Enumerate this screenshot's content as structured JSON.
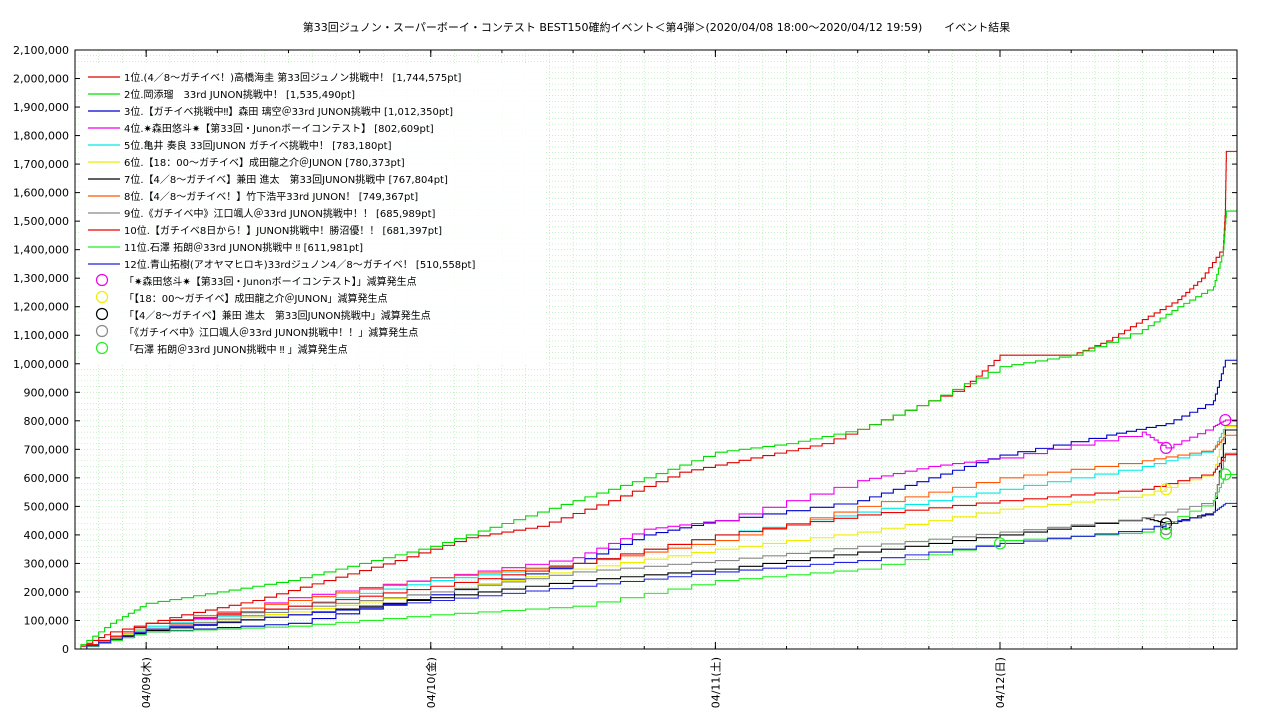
{
  "chart_data": {
    "type": "line",
    "title": "第33回ジュノン・スーパーボーイ・コンテスト BEST150確約イベント＜第4弾＞(2020/04/08 18:00～2020/04/12 19:59)　　イベント結果",
    "xlabel": "",
    "ylabel": "",
    "grid": true,
    "legend_position": "top-left",
    "x_range": [
      "2020-04-08 18:00",
      "2020-04-12 19:59"
    ],
    "ylim": [
      0,
      2100000
    ],
    "y_ticks": [
      0,
      100000,
      200000,
      300000,
      400000,
      500000,
      600000,
      700000,
      800000,
      900000,
      1000000,
      1100000,
      1200000,
      1300000,
      1400000,
      1500000,
      1600000,
      1700000,
      1800000,
      1900000,
      2000000,
      2100000
    ],
    "y_tick_labels": [
      "0",
      "100,000",
      "200,000",
      "300,000",
      "400,000",
      "500,000",
      "600,000",
      "700,000",
      "800,000",
      "900,000",
      "1,000,000",
      "1,100,000",
      "1,200,000",
      "1,300,000",
      "1,400,000",
      "1,500,000",
      "1,600,000",
      "1,700,000",
      "1,800,000",
      "1,900,000",
      "2,000,000",
      "2,100,000"
    ],
    "x_ticks": [
      {
        "x": "2020-04-09 00:00",
        "label": "04/09(木)"
      },
      {
        "x": "2020-04-10 00:00",
        "label": "04/10(金)"
      },
      {
        "x": "2020-04-11 00:00",
        "label": "04/11(土)"
      },
      {
        "x": "2020-04-12 00:00",
        "label": "04/12(日)"
      }
    ],
    "series": [
      {
        "name": "1位.(4／8～ガチイベ！)高橋海圭 第33回ジュノン挑戦中！ [1,744,575pt]",
        "color": "#e00000",
        "points": [
          [
            "2020-04-08 18:00",
            0
          ],
          [
            "2020-04-08 21:00",
            60000
          ],
          [
            "2020-04-09 03:00",
            120000
          ],
          [
            "2020-04-09 09:00",
            170000
          ],
          [
            "2020-04-09 15:00",
            240000
          ],
          [
            "2020-04-09 21:00",
            310000
          ],
          [
            "2020-04-10 03:00",
            390000
          ],
          [
            "2020-04-10 09:00",
            430000
          ],
          [
            "2020-04-10 15:00",
            520000
          ],
          [
            "2020-04-10 21:00",
            620000
          ],
          [
            "2020-04-11 03:00",
            670000
          ],
          [
            "2020-04-11 09:00",
            720000
          ],
          [
            "2020-04-11 15:00",
            820000
          ],
          [
            "2020-04-11 21:00",
            920000
          ],
          [
            "2020-04-12 00:00",
            1030000
          ],
          [
            "2020-04-12 06:00",
            1030000
          ],
          [
            "2020-04-12 09:00",
            1080000
          ],
          [
            "2020-04-12 12:00",
            1155000
          ],
          [
            "2020-04-12 15:00",
            1225000
          ],
          [
            "2020-04-12 17:00",
            1300000
          ],
          [
            "2020-04-12 18:50",
            1410000
          ],
          [
            "2020-04-12 19:00",
            1540000
          ],
          [
            "2020-04-12 19:05",
            1744575
          ]
        ]
      },
      {
        "name": "2位.岡添瑠　33rd JUNON挑戦中！ [1,535,490pt]",
        "color": "#00dd00",
        "points": [
          [
            "2020-04-08 18:00",
            0
          ],
          [
            "2020-04-08 21:00",
            90000
          ],
          [
            "2020-04-09 00:00",
            160000
          ],
          [
            "2020-04-09 06:00",
            200000
          ],
          [
            "2020-04-09 12:00",
            240000
          ],
          [
            "2020-04-09 18:00",
            300000
          ],
          [
            "2020-04-10 00:00",
            360000
          ],
          [
            "2020-04-10 06:00",
            440000
          ],
          [
            "2020-04-10 12:00",
            520000
          ],
          [
            "2020-04-10 18:00",
            600000
          ],
          [
            "2020-04-11 00:00",
            690000
          ],
          [
            "2020-04-11 06:00",
            720000
          ],
          [
            "2020-04-11 12:00",
            770000
          ],
          [
            "2020-04-11 18:00",
            870000
          ],
          [
            "2020-04-12 00:00",
            990000
          ],
          [
            "2020-04-12 06:00",
            1030000
          ],
          [
            "2020-04-12 12:00",
            1120000
          ],
          [
            "2020-04-12 15:00",
            1200000
          ],
          [
            "2020-04-12 18:00",
            1270000
          ],
          [
            "2020-04-12 18:50",
            1400000
          ],
          [
            "2020-04-12 19:05",
            1535490
          ]
        ]
      },
      {
        "name": "3位.【ガチイベ挑戦中‼】森田 璃空＠33rd JUNON挑戦中 [1,012,350pt]",
        "color": "#0000cc",
        "points": [
          [
            "2020-04-08 18:00",
            0
          ],
          [
            "2020-04-09 00:00",
            60000
          ],
          [
            "2020-04-09 12:00",
            90000
          ],
          [
            "2020-04-10 00:00",
            190000
          ],
          [
            "2020-04-10 12:00",
            300000
          ],
          [
            "2020-04-10 18:00",
            400000
          ],
          [
            "2020-04-11 00:00",
            450000
          ],
          [
            "2020-04-11 12:00",
            520000
          ],
          [
            "2020-04-11 18:00",
            600000
          ],
          [
            "2020-04-12 00:00",
            680000
          ],
          [
            "2020-04-12 09:00",
            750000
          ],
          [
            "2020-04-12 14:00",
            790000
          ],
          [
            "2020-04-12 18:00",
            870000
          ],
          [
            "2020-04-12 19:00",
            1012350
          ]
        ]
      },
      {
        "name": "4位.✷森田悠斗✷【第33回・Junonボーイコンテスト】 [802,609pt]",
        "color": "#ee00ee",
        "points": [
          [
            "2020-04-08 18:00",
            0
          ],
          [
            "2020-04-09 00:00",
            70000
          ],
          [
            "2020-04-09 12:00",
            180000
          ],
          [
            "2020-04-10 00:00",
            250000
          ],
          [
            "2020-04-10 12:00",
            320000
          ],
          [
            "2020-04-10 18:00",
            420000
          ],
          [
            "2020-04-11 00:00",
            450000
          ],
          [
            "2020-04-11 12:00",
            590000
          ],
          [
            "2020-04-11 18:00",
            640000
          ],
          [
            "2020-04-12 00:00",
            670000
          ],
          [
            "2020-04-12 12:00",
            760000
          ],
          [
            "2020-04-12 14:00",
            705000
          ],
          [
            "2020-04-12 18:00",
            780000
          ],
          [
            "2020-04-12 19:00",
            802609
          ]
        ]
      },
      {
        "name": "5位.亀井 奏良 33回JUNON ガチイベ挑戦中！ [783,180pt]",
        "color": "#00e8e8",
        "points": [
          [
            "2020-04-08 18:00",
            0
          ],
          [
            "2020-04-09 00:00",
            80000
          ],
          [
            "2020-04-09 12:00",
            150000
          ],
          [
            "2020-04-10 00:00",
            240000
          ],
          [
            "2020-04-10 12:00",
            300000
          ],
          [
            "2020-04-11 00:00",
            400000
          ],
          [
            "2020-04-11 12:00",
            480000
          ],
          [
            "2020-04-12 00:00",
            560000
          ],
          [
            "2020-04-12 12:00",
            640000
          ],
          [
            "2020-04-12 18:00",
            700000
          ],
          [
            "2020-04-12 19:00",
            783180
          ]
        ]
      },
      {
        "name": "6位.【18：00～ガチイベ】成田龍之介＠JUNON [780,373pt]",
        "color": "#eeee00",
        "points": [
          [
            "2020-04-08 18:00",
            0
          ],
          [
            "2020-04-09 00:00",
            75000
          ],
          [
            "2020-04-09 12:00",
            130000
          ],
          [
            "2020-04-10 00:00",
            200000
          ],
          [
            "2020-04-10 12:00",
            280000
          ],
          [
            "2020-04-11 00:00",
            350000
          ],
          [
            "2020-04-11 12:00",
            410000
          ],
          [
            "2020-04-12 00:00",
            490000
          ],
          [
            "2020-04-12 12:00",
            540000
          ],
          [
            "2020-04-12 18:00",
            620000
          ],
          [
            "2020-04-12 19:00",
            780373
          ]
        ]
      },
      {
        "name": "7位.【4／8～ガチイベ】兼田 進太　第33回JUNON挑戦中 [767,804pt]",
        "color": "#000000",
        "points": [
          [
            "2020-04-08 18:00",
            0
          ],
          [
            "2020-04-09 00:00",
            65000
          ],
          [
            "2020-04-09 12:00",
            120000
          ],
          [
            "2020-04-10 00:00",
            180000
          ],
          [
            "2020-04-10 12:00",
            240000
          ],
          [
            "2020-04-11 00:00",
            280000
          ],
          [
            "2020-04-11 12:00",
            340000
          ],
          [
            "2020-04-12 00:00",
            400000
          ],
          [
            "2020-04-12 12:00",
            460000
          ],
          [
            "2020-04-12 14:00",
            440000
          ],
          [
            "2020-04-12 18:00",
            480000
          ],
          [
            "2020-04-12 19:00",
            767804
          ]
        ]
      },
      {
        "name": "8位.【4／8～ガチイベ！】竹下浩平33rd JUNON！ [749,367pt]",
        "color": "#ff5500",
        "points": [
          [
            "2020-04-08 18:00",
            0
          ],
          [
            "2020-04-09 00:00",
            90000
          ],
          [
            "2020-04-09 12:00",
            170000
          ],
          [
            "2020-04-10 00:00",
            250000
          ],
          [
            "2020-04-10 12:00",
            300000
          ],
          [
            "2020-04-11 00:00",
            380000
          ],
          [
            "2020-04-11 12:00",
            500000
          ],
          [
            "2020-04-12 00:00",
            600000
          ],
          [
            "2020-04-12 12:00",
            660000
          ],
          [
            "2020-04-12 18:00",
            700000
          ],
          [
            "2020-04-12 19:00",
            749367
          ]
        ]
      },
      {
        "name": "9位.《ガチイベ中》江口颯人＠33rd JUNON挑戦中！！ [685,989pt]",
        "color": "#888888",
        "points": [
          [
            "2020-04-08 18:00",
            0
          ],
          [
            "2020-04-09 00:00",
            70000
          ],
          [
            "2020-04-09 12:00",
            140000
          ],
          [
            "2020-04-10 00:00",
            200000
          ],
          [
            "2020-04-10 12:00",
            270000
          ],
          [
            "2020-04-11 00:00",
            310000
          ],
          [
            "2020-04-11 12:00",
            360000
          ],
          [
            "2020-04-12 00:00",
            410000
          ],
          [
            "2020-04-12 12:00",
            460000
          ],
          [
            "2020-04-12 18:00",
            520000
          ],
          [
            "2020-04-12 19:00",
            685989
          ]
        ]
      },
      {
        "name": "10位.【ガチイベ8日から！】JUNON挑戦中！勝沼優！！ [681,397pt]",
        "color": "#ee0000",
        "points": [
          [
            "2020-04-08 18:00",
            0
          ],
          [
            "2020-04-09 00:00",
            90000
          ],
          [
            "2020-04-09 12:00",
            150000
          ],
          [
            "2020-04-10 00:00",
            220000
          ],
          [
            "2020-04-10 12:00",
            300000
          ],
          [
            "2020-04-11 00:00",
            400000
          ],
          [
            "2020-04-11 12:00",
            470000
          ],
          [
            "2020-04-12 00:00",
            520000
          ],
          [
            "2020-04-12 12:00",
            560000
          ],
          [
            "2020-04-12 18:00",
            620000
          ],
          [
            "2020-04-12 19:00",
            681397
          ]
        ]
      },
      {
        "name": "11位.石澤 拓朗＠33rd JUNON挑戦中 ‼ [611,981pt]",
        "color": "#22ee22",
        "points": [
          [
            "2020-04-08 18:00",
            0
          ],
          [
            "2020-04-09 00:00",
            60000
          ],
          [
            "2020-04-09 12:00",
            80000
          ],
          [
            "2020-04-10 00:00",
            120000
          ],
          [
            "2020-04-10 12:00",
            150000
          ],
          [
            "2020-04-11 00:00",
            240000
          ],
          [
            "2020-04-11 12:00",
            280000
          ],
          [
            "2020-04-12 00:00",
            380000
          ],
          [
            "2020-04-12 12:00",
            410000
          ],
          [
            "2020-04-12 18:00",
            520000
          ],
          [
            "2020-04-12 19:00",
            611981
          ]
        ]
      },
      {
        "name": "12位.青山拓樹(アオヤマヒロキ)33rdジュノン4／8～ガチイベ！ [510,558pt]",
        "color": "#2222dd",
        "points": [
          [
            "2020-04-08 18:00",
            0
          ],
          [
            "2020-04-09 00:00",
            70000
          ],
          [
            "2020-04-09 12:00",
            120000
          ],
          [
            "2020-04-10 00:00",
            170000
          ],
          [
            "2020-04-10 12:00",
            220000
          ],
          [
            "2020-04-11 00:00",
            270000
          ],
          [
            "2020-04-11 12:00",
            310000
          ],
          [
            "2020-04-12 00:00",
            370000
          ],
          [
            "2020-04-12 12:00",
            420000
          ],
          [
            "2020-04-12 18:00",
            480000
          ],
          [
            "2020-04-12 19:00",
            510558
          ]
        ]
      }
    ],
    "markers": [
      {
        "name": "「✷森田悠斗✷【第33回・Junonボーイコンテスト】」減算発生点",
        "color": "#ee00ee",
        "x_values": [
          [
            "2020-04-12 14:00",
            705000
          ],
          [
            "2020-04-12 19:00",
            802609
          ]
        ]
      },
      {
        "name": "「【18：00～ガチイベ】成田龍之介＠JUNON」減算発生点",
        "color": "#eeee00",
        "x_values": [
          [
            "2020-04-12 14:00",
            560000
          ]
        ]
      },
      {
        "name": "「【4／8～ガチイベ】兼田 進太　第33回JUNON挑戦中」減算発生点",
        "color": "#000000",
        "x_values": [
          [
            "2020-04-12 14:00",
            440000
          ]
        ]
      },
      {
        "name": "「《ガチイベ中》江口颯人＠33rd JUNON挑戦中！！」減算発生点",
        "color": "#888888",
        "x_values": [
          [
            "2020-04-12 14:00",
            420000
          ]
        ]
      },
      {
        "name": "「石澤 拓朗＠33rd JUNON挑戦中 ‼ 」減算発生点",
        "color": "#22ee22",
        "x_values": [
          [
            "2020-04-12 00:00",
            370000
          ],
          [
            "2020-04-12 14:00",
            405000
          ],
          [
            "2020-04-12 19:00",
            611981
          ]
        ]
      }
    ]
  }
}
